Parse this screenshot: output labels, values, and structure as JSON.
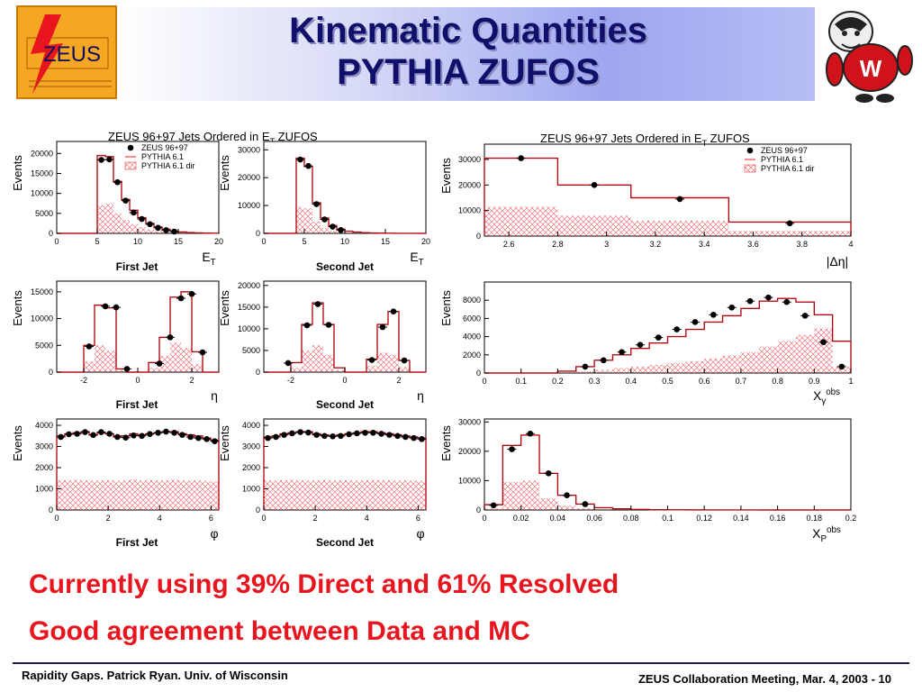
{
  "title": {
    "line1": "Kinematic Quantities",
    "line2": "PYTHIA ZUFOS"
  },
  "logo": {
    "text": "ZEUS"
  },
  "colors": {
    "data": "#000000",
    "mc_total": "#e8141e",
    "mc_direct": "#e8141e",
    "title": "#10106a",
    "blurb": "#e8141e"
  },
  "icons": {
    "mascot": "badger-mascot-icon",
    "logo": "zeus-logo-icon"
  },
  "chart_data": [
    {
      "id": "et1",
      "type": "histogram",
      "title": "ZEUS 96+97 Jets Ordered in E_T ZUFOS",
      "ylabel": "Events",
      "xlabel": "E_T",
      "sublabel": "First Jet",
      "legend": {
        "placement": "top-right",
        "entries": [
          "ZEUS 96+97",
          "PYTHIA 6.1",
          "PYTHIA 6.1 dir"
        ]
      },
      "xlim": [
        0,
        20
      ],
      "ylim": [
        0,
        23000
      ],
      "xticks": [
        0,
        5,
        10,
        15,
        20
      ],
      "yticks": [
        0,
        5000,
        10000,
        15000,
        20000
      ],
      "edges": [
        0,
        5,
        6,
        7,
        8,
        9,
        10,
        11,
        12,
        13,
        14,
        15,
        16,
        17,
        18,
        19,
        20
      ],
      "total": [
        0,
        19500,
        19200,
        13000,
        8500,
        5800,
        3900,
        2500,
        1600,
        1000,
        600,
        350,
        200,
        120,
        70,
        40
      ],
      "direct": [
        0,
        7000,
        7500,
        5000,
        3400,
        2300,
        1600,
        1000,
        700,
        450,
        280,
        170,
        100,
        60,
        35,
        20
      ],
      "data": [
        [
          5.5,
          18400
        ],
        [
          6.5,
          18500
        ],
        [
          7.5,
          12800
        ],
        [
          8.5,
          8200
        ],
        [
          9.5,
          5200
        ],
        [
          10.5,
          3600
        ],
        [
          11.5,
          2300
        ],
        [
          12.5,
          1400
        ],
        [
          13.5,
          800
        ],
        [
          14.5,
          450
        ]
      ]
    },
    {
      "id": "et2",
      "type": "histogram",
      "ylabel": "Events",
      "xlabel": "E_T",
      "sublabel": "Second Jet",
      "xlim": [
        0,
        20
      ],
      "ylim": [
        0,
        33000
      ],
      "xticks": [
        0,
        5,
        10,
        15,
        20
      ],
      "yticks": [
        0,
        10000,
        20000,
        30000
      ],
      "edges": [
        0,
        4,
        5,
        6,
        7,
        8,
        9,
        10,
        11,
        12,
        13,
        14,
        15,
        16,
        17,
        18,
        19,
        20
      ],
      "total": [
        0,
        27000,
        24000,
        11000,
        5500,
        2800,
        1500,
        800,
        450,
        250,
        140,
        80,
        45,
        25,
        15,
        8,
        4
      ],
      "direct": [
        0,
        9500,
        9000,
        4200,
        2000,
        1000,
        550,
        300,
        170,
        95,
        55,
        30,
        17,
        10,
        6,
        3,
        2
      ],
      "data": [
        [
          4.5,
          26500
        ],
        [
          5.5,
          24200
        ],
        [
          6.5,
          10500
        ],
        [
          7.5,
          5000
        ],
        [
          8.5,
          2400
        ],
        [
          9.5,
          1200
        ]
      ]
    },
    {
      "id": "deta",
      "type": "histogram",
      "title": "ZEUS 96+97 Jets Ordered in E_T ZUFOS",
      "ylabel": "Events",
      "xlabel": "|Δη|",
      "legend": {
        "placement": "top-right",
        "entries": [
          "ZEUS 96+97",
          "PYTHIA 6.1",
          "PYTHIA 6.1 dir"
        ]
      },
      "xlim": [
        2.5,
        4
      ],
      "ylim": [
        0,
        36000
      ],
      "xticks": [
        2.6,
        2.8,
        3,
        3.2,
        3.4,
        3.6,
        3.8,
        4
      ],
      "yticks": [
        0,
        10000,
        20000,
        30000
      ],
      "edges": [
        2.5,
        2.8,
        3.1,
        3.5,
        4.0
      ],
      "total": [
        30500,
        20000,
        15000,
        5500
      ],
      "direct": [
        11500,
        8000,
        6000,
        2000
      ],
      "data": [
        [
          2.65,
          30500
        ],
        [
          2.95,
          20000
        ],
        [
          3.3,
          14500
        ],
        [
          3.75,
          5000
        ]
      ]
    },
    {
      "id": "eta1",
      "type": "histogram",
      "ylabel": "Events",
      "xlabel": "η",
      "sublabel": "First Jet",
      "xlim": [
        -3,
        3
      ],
      "ylim": [
        0,
        17000
      ],
      "xticks": [
        -2,
        0,
        2
      ],
      "yticks": [
        0,
        5000,
        10000,
        15000
      ],
      "edges": [
        -3,
        -2.4,
        -2,
        -1.6,
        -1.2,
        -0.8,
        -0.4,
        0,
        0.4,
        0.8,
        1.2,
        1.6,
        2,
        2.4,
        3
      ],
      "total": [
        0,
        0,
        5000,
        12500,
        12000,
        600,
        0,
        0,
        1800,
        6500,
        14000,
        15000,
        3800,
        0
      ],
      "direct": [
        0,
        0,
        2000,
        5000,
        4000,
        400,
        0,
        0,
        800,
        3000,
        5500,
        4500,
        1500,
        0
      ],
      "data": [
        [
          -1.8,
          4800
        ],
        [
          -1.2,
          12300
        ],
        [
          -0.8,
          12100
        ],
        [
          -0.4,
          600
        ],
        [
          0.8,
          1600
        ],
        [
          1.2,
          6500
        ],
        [
          1.6,
          13800
        ],
        [
          2.0,
          14600
        ],
        [
          2.4,
          3700
        ]
      ]
    },
    {
      "id": "eta2",
      "type": "histogram",
      "ylabel": "Events",
      "xlabel": "η",
      "sublabel": "Second Jet",
      "xlim": [
        -3,
        3
      ],
      "ylim": [
        0,
        21000
      ],
      "xticks": [
        -2,
        0,
        2
      ],
      "yticks": [
        0,
        5000,
        10000,
        15000,
        20000
      ],
      "edges": [
        -3,
        -2.4,
        -2,
        -1.6,
        -1.2,
        -0.8,
        -0.4,
        0,
        0.4,
        0.8,
        1.2,
        1.6,
        2,
        2.4,
        3
      ],
      "total": [
        0,
        0,
        2200,
        11000,
        16000,
        11000,
        1000,
        0,
        0,
        3000,
        11000,
        14000,
        2700,
        0
      ],
      "direct": [
        0,
        0,
        1000,
        5000,
        6200,
        4000,
        500,
        0,
        0,
        1500,
        4500,
        4000,
        1200,
        0
      ],
      "data": [
        [
          -2.1,
          2100
        ],
        [
          -1.4,
          10800
        ],
        [
          -1.0,
          15700
        ],
        [
          -0.6,
          10900
        ],
        [
          1.0,
          2800
        ],
        [
          1.4,
          10400
        ],
        [
          1.8,
          14000
        ],
        [
          2.2,
          2700
        ]
      ]
    },
    {
      "id": "xg",
      "type": "histogram",
      "ylabel": "Events",
      "xlabel": "X_γ^obs",
      "xlim": [
        0,
        1
      ],
      "ylim": [
        0,
        10000
      ],
      "xticks": [
        0,
        0.1,
        0.2,
        0.3,
        0.4,
        0.5,
        0.6,
        0.7,
        0.8,
        0.9,
        1
      ],
      "yticks": [
        0,
        2000,
        4000,
        6000,
        8000
      ],
      "edges": [
        0,
        0.05,
        0.1,
        0.15,
        0.2,
        0.25,
        0.3,
        0.35,
        0.4,
        0.45,
        0.5,
        0.55,
        0.6,
        0.65,
        0.7,
        0.75,
        0.8,
        0.85,
        0.9,
        0.95,
        1.0
      ],
      "total": [
        0,
        0,
        0,
        0,
        200,
        700,
        1400,
        2000,
        2700,
        3300,
        4000,
        4800,
        5600,
        6300,
        7100,
        7900,
        8200,
        7800,
        6400,
        3500
      ],
      "direct": [
        0,
        0,
        0,
        0,
        50,
        200,
        350,
        550,
        700,
        900,
        1100,
        1300,
        1600,
        1900,
        2300,
        2900,
        3500,
        4200,
        4900,
        700
      ],
      "data": [
        [
          0.275,
          700
        ],
        [
          0.325,
          1400
        ],
        [
          0.375,
          2300
        ],
        [
          0.425,
          3100
        ],
        [
          0.475,
          3900
        ],
        [
          0.525,
          4800
        ],
        [
          0.575,
          5600
        ],
        [
          0.625,
          6400
        ],
        [
          0.675,
          7200
        ],
        [
          0.725,
          7900
        ],
        [
          0.775,
          8300
        ],
        [
          0.825,
          7800
        ],
        [
          0.875,
          6300
        ],
        [
          0.925,
          3400
        ],
        [
          0.975,
          700
        ]
      ]
    },
    {
      "id": "phi1",
      "type": "histogram",
      "ylabel": "Events",
      "xlabel": "φ",
      "sublabel": "First Jet",
      "xlim": [
        0,
        6.3
      ],
      "ylim": [
        0,
        4300
      ],
      "xticks": [
        0,
        2,
        4,
        6
      ],
      "yticks": [
        0,
        1000,
        2000,
        3000,
        4000
      ],
      "edges": [
        0,
        0.315,
        0.63,
        0.945,
        1.26,
        1.575,
        1.89,
        2.205,
        2.52,
        2.835,
        3.15,
        3.465,
        3.78,
        4.095,
        4.41,
        4.725,
        5.04,
        5.355,
        5.67,
        5.985,
        6.3
      ],
      "total": [
        3500,
        3600,
        3650,
        3700,
        3550,
        3650,
        3600,
        3500,
        3500,
        3600,
        3550,
        3600,
        3650,
        3700,
        3700,
        3600,
        3550,
        3500,
        3400,
        3300
      ],
      "direct": [
        1400,
        1400,
        1420,
        1400,
        1380,
        1400,
        1420,
        1380,
        1400,
        1450,
        1400,
        1420,
        1400,
        1400,
        1430,
        1400,
        1380,
        1400,
        1370,
        1350
      ],
      "data": [
        [
          0.16,
          3450
        ],
        [
          0.47,
          3580
        ],
        [
          0.79,
          3600
        ],
        [
          1.1,
          3680
        ],
        [
          1.42,
          3540
        ],
        [
          1.73,
          3680
        ],
        [
          2.05,
          3600
        ],
        [
          2.36,
          3450
        ],
        [
          2.68,
          3420
        ],
        [
          2.99,
          3520
        ],
        [
          3.31,
          3500
        ],
        [
          3.62,
          3590
        ],
        [
          3.94,
          3650
        ],
        [
          4.25,
          3700
        ],
        [
          4.57,
          3650
        ],
        [
          4.88,
          3550
        ],
        [
          5.2,
          3450
        ],
        [
          5.51,
          3400
        ],
        [
          5.83,
          3350
        ],
        [
          6.14,
          3250
        ]
      ]
    },
    {
      "id": "phi2",
      "type": "histogram",
      "ylabel": "Events",
      "xlabel": "φ",
      "sublabel": "Second Jet",
      "xlim": [
        0,
        6.3
      ],
      "ylim": [
        0,
        4300
      ],
      "xticks": [
        0,
        2,
        4,
        6
      ],
      "yticks": [
        0,
        1000,
        2000,
        3000,
        4000
      ],
      "edges": [
        0,
        0.315,
        0.63,
        0.945,
        1.26,
        1.575,
        1.89,
        2.205,
        2.52,
        2.835,
        3.15,
        3.465,
        3.78,
        4.095,
        4.41,
        4.725,
        5.04,
        5.355,
        5.67,
        5.985,
        6.3
      ],
      "total": [
        3450,
        3500,
        3600,
        3650,
        3700,
        3700,
        3600,
        3550,
        3500,
        3550,
        3600,
        3650,
        3700,
        3700,
        3650,
        3600,
        3550,
        3500,
        3450,
        3400
      ],
      "direct": [
        1400,
        1390,
        1410,
        1420,
        1400,
        1390,
        1400,
        1420,
        1400,
        1410,
        1400,
        1390,
        1400,
        1420,
        1410,
        1400,
        1390,
        1400,
        1380,
        1370
      ],
      "data": [
        [
          0.16,
          3400
        ],
        [
          0.47,
          3450
        ],
        [
          0.79,
          3550
        ],
        [
          1.1,
          3620
        ],
        [
          1.42,
          3680
        ],
        [
          1.73,
          3660
        ],
        [
          2.05,
          3550
        ],
        [
          2.36,
          3500
        ],
        [
          2.68,
          3480
        ],
        [
          2.99,
          3500
        ],
        [
          3.31,
          3580
        ],
        [
          3.62,
          3620
        ],
        [
          3.94,
          3650
        ],
        [
          4.25,
          3650
        ],
        [
          4.57,
          3600
        ],
        [
          4.88,
          3550
        ],
        [
          5.2,
          3500
        ],
        [
          5.51,
          3450
        ],
        [
          5.83,
          3400
        ],
        [
          6.14,
          3350
        ]
      ]
    },
    {
      "id": "xp",
      "type": "histogram",
      "ylabel": "Events",
      "xlabel": "X_P^obs",
      "xlim": [
        0,
        0.2
      ],
      "ylim": [
        0,
        31000
      ],
      "xticks": [
        0,
        0.02,
        0.04,
        0.06,
        0.08,
        0.1,
        0.12,
        0.14,
        0.16,
        0.18,
        0.2
      ],
      "yticks": [
        0,
        10000,
        20000,
        30000
      ],
      "edges": [
        0,
        0.01,
        0.02,
        0.03,
        0.04,
        0.05,
        0.06,
        0.07,
        0.08,
        0.09,
        0.1,
        0.11,
        0.12,
        0.13,
        0.14,
        0.15,
        0.16,
        0.17,
        0.18,
        0.19,
        0.2
      ],
      "total": [
        1800,
        22000,
        25500,
        12500,
        5000,
        2000,
        800,
        400,
        200,
        100,
        60,
        40,
        20,
        10,
        5,
        3,
        2,
        1,
        1,
        1
      ],
      "direct": [
        500,
        9500,
        10000,
        4000,
        1500,
        600,
        250,
        120,
        60,
        30,
        15,
        10,
        5,
        3,
        2,
        1,
        1,
        0,
        0,
        0
      ],
      "data": [
        [
          0.005,
          1600
        ],
        [
          0.015,
          20700
        ],
        [
          0.025,
          26000
        ],
        [
          0.035,
          12500
        ],
        [
          0.045,
          5000
        ],
        [
          0.055,
          2000
        ]
      ]
    }
  ],
  "blurb": {
    "line1": "Currently using 39% Direct and 61% Resolved",
    "line2": "Good agreement between Data and MC"
  },
  "footer": {
    "left": "Rapidity Gaps. Patrick Ryan. Univ. of Wisconsin",
    "right": "ZEUS Collaboration Meeting, Mar. 4, 2003 - 10"
  }
}
